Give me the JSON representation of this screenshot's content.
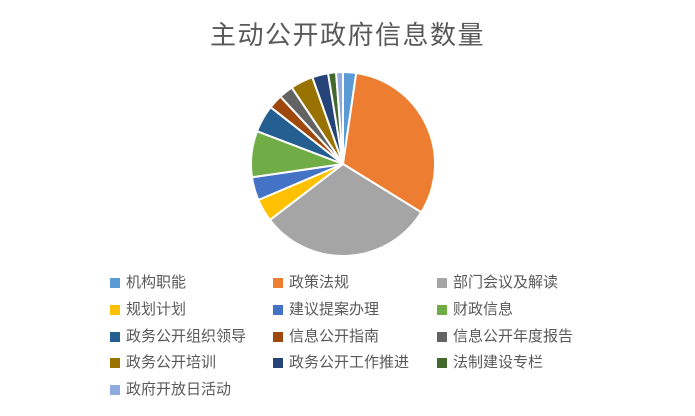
{
  "title": {
    "text": "主动公开政府信息数量"
  },
  "colors": {
    "background": "#FFFFFF",
    "title_text": "#595959",
    "legend_text": "#595959",
    "slice_border": "#FFFFFF"
  },
  "chart_data": {
    "type": "pie",
    "title": "主动公开政府信息数量",
    "categories": [
      "机构职能",
      "政策法规",
      "部门会议及解读",
      "规划计划",
      "建议提案办理",
      "财政信息",
      "政务公开组织领导",
      "信息公开指南",
      "信息公开年度报告",
      "政务公开培训",
      "政务公开工作推进",
      "法制建设专栏",
      "政府开放日活动"
    ],
    "values": [
      2.3,
      31.5,
      30.8,
      4.0,
      4.1,
      8.1,
      4.8,
      2.5,
      2.5,
      4.0,
      2.8,
      1.4,
      1.2
    ],
    "values_note": "percent, estimated from slice angles (no data labels shown)",
    "colors": [
      "#5B9BD5",
      "#ED7D31",
      "#A5A5A5",
      "#FFC000",
      "#4472C4",
      "#70AD47",
      "#255E91",
      "#9E480E",
      "#636363",
      "#997300",
      "#264478",
      "#43682B",
      "#8FAADC"
    ],
    "start_angle_deg": 0,
    "legend_position": "bottom",
    "legend_columns": 3
  }
}
